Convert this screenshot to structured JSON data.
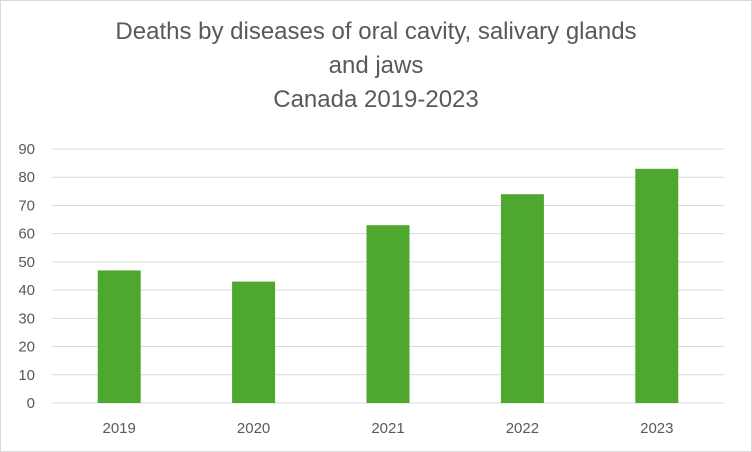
{
  "chart_data": {
    "type": "bar",
    "title_lines": [
      "Deaths by diseases of oral cavity, salivary glands",
      "and jaws",
      "Canada 2019-2023"
    ],
    "categories": [
      "2019",
      "2020",
      "2021",
      "2022",
      "2023"
    ],
    "values": [
      47,
      43,
      63,
      74,
      83
    ],
    "yticks": [
      "0",
      "10",
      "20",
      "30",
      "40",
      "50",
      "60",
      "70",
      "80",
      "90"
    ],
    "ylim": [
      0,
      90
    ],
    "grid": true,
    "legend": "none",
    "bar_color": "#4ea72e",
    "grid_color": "#d9d9d9"
  }
}
